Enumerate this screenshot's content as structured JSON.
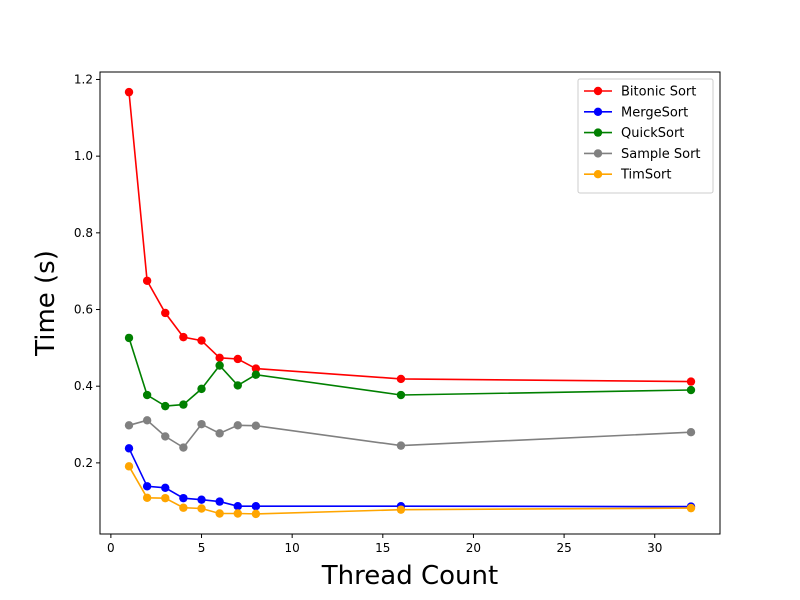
{
  "chart_data": {
    "type": "line",
    "xlabel": "Thread Count",
    "ylabel": "Time (s)",
    "xlim": [
      -0.6,
      33.6
    ],
    "ylim": [
      0.0145,
      1.2195
    ],
    "x_ticks": [
      0,
      5,
      10,
      15,
      20,
      25,
      30
    ],
    "y_ticks": [
      0.2,
      0.4,
      0.6,
      0.8,
      1.0,
      1.2
    ],
    "x_tick_labels": [
      "0",
      "5",
      "10",
      "15",
      "20",
      "25",
      "30"
    ],
    "y_tick_labels": [
      "0.2",
      "0.4",
      "0.6",
      "0.8",
      "1.0",
      "1.2"
    ],
    "grid": false,
    "legend_position": "top-right",
    "x": [
      1,
      2,
      3,
      4,
      5,
      6,
      7,
      8,
      16,
      32
    ],
    "series": [
      {
        "name": "Bitonic Sort",
        "color": "#ff0000",
        "values": [
          1.167,
          0.675,
          0.591,
          0.528,
          0.519,
          0.474,
          0.471,
          0.446,
          0.419,
          0.412
        ]
      },
      {
        "name": "MergeSort",
        "color": "#0000ff",
        "values": [
          0.238,
          0.139,
          0.135,
          0.108,
          0.104,
          0.099,
          0.087,
          0.087,
          0.087,
          0.086
        ]
      },
      {
        "name": "QuickSort",
        "color": "#008000",
        "values": [
          0.526,
          0.377,
          0.348,
          0.352,
          0.393,
          0.454,
          0.402,
          0.43,
          0.377,
          0.39
        ]
      },
      {
        "name": "Sample Sort",
        "color": "#808080",
        "values": [
          0.298,
          0.311,
          0.269,
          0.24,
          0.301,
          0.277,
          0.298,
          0.297,
          0.245,
          0.28
        ]
      },
      {
        "name": "TimSort",
        "color": "#ffa500",
        "values": [
          0.191,
          0.109,
          0.108,
          0.083,
          0.081,
          0.068,
          0.068,
          0.067,
          0.078,
          0.082
        ]
      }
    ]
  }
}
